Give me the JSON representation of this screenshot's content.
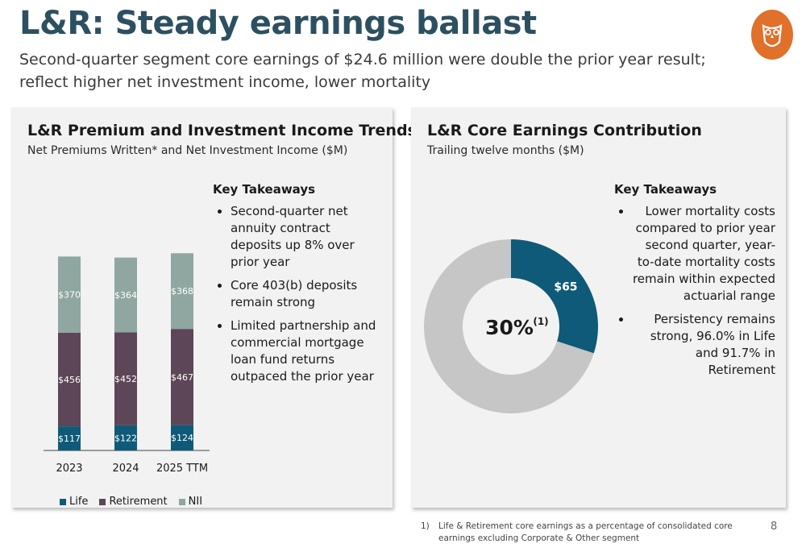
{
  "title": "L&R: Steady earnings ballast",
  "subtitle": "Second-quarter segment core earnings of $24.6 million were double the prior year result; reflect higher net investment income, lower mortality",
  "colors": {
    "title": "#2d5060",
    "logo": "#e0702a",
    "life": "#0f5a78",
    "retirement": "#5d4657",
    "nii": "#8fa7a0",
    "donut_rest": "#c6c6c6"
  },
  "left_panel": {
    "title": "L&R Premium and Investment Income Trends",
    "subtitle": "Net Premiums Written* and Net Investment Income ($M)",
    "key_takeaways_title": "Key Takeaways",
    "takeaways": [
      "Second-quarter net annuity contract deposits up 8% over prior year",
      "Core 403(b) deposits remain strong",
      "Limited partnership and commercial mortgage loan fund returns outpaced the prior year"
    ]
  },
  "right_panel": {
    "title": "L&R Core Earnings Contribution",
    "subtitle": "Trailing twelve months ($M)",
    "key_takeaways_title": "Key Takeaways",
    "takeaways": [
      "Lower mortality costs compared to prior year second quarter, year-to-date mortality costs remain within expected actuarial range",
      "Persistency remains strong, 96.0% in Life and 91.7% in Retirement"
    ],
    "center_label": "30%",
    "center_superscript": "(1)"
  },
  "chart_data": [
    {
      "type": "bar",
      "stacked": true,
      "categories": [
        "2023",
        "2024",
        "2025 TTM"
      ],
      "series": [
        {
          "name": "Life",
          "values": [
            117,
            122,
            124
          ],
          "labels": [
            "$117",
            "$122",
            "$124"
          ]
        },
        {
          "name": "Retirement",
          "values": [
            456,
            452,
            467
          ],
          "labels": [
            "$456",
            "$452",
            "$467"
          ]
        },
        {
          "name": "NII",
          "values": [
            370,
            364,
            368
          ],
          "labels": [
            "$370",
            "$364",
            "$368"
          ]
        }
      ],
      "legend_position": "bottom"
    },
    {
      "type": "pie",
      "donut": true,
      "slices": [
        {
          "value": 30,
          "label": "$65"
        },
        {
          "value": 70,
          "label": ""
        }
      ]
    }
  ],
  "footnote": {
    "number": "1)",
    "text": "Life & Retirement core earnings as a percentage of consolidated core earnings excluding Corporate & Other segment"
  },
  "page_number": "8",
  "logo_icon": "owl-logo-icon"
}
